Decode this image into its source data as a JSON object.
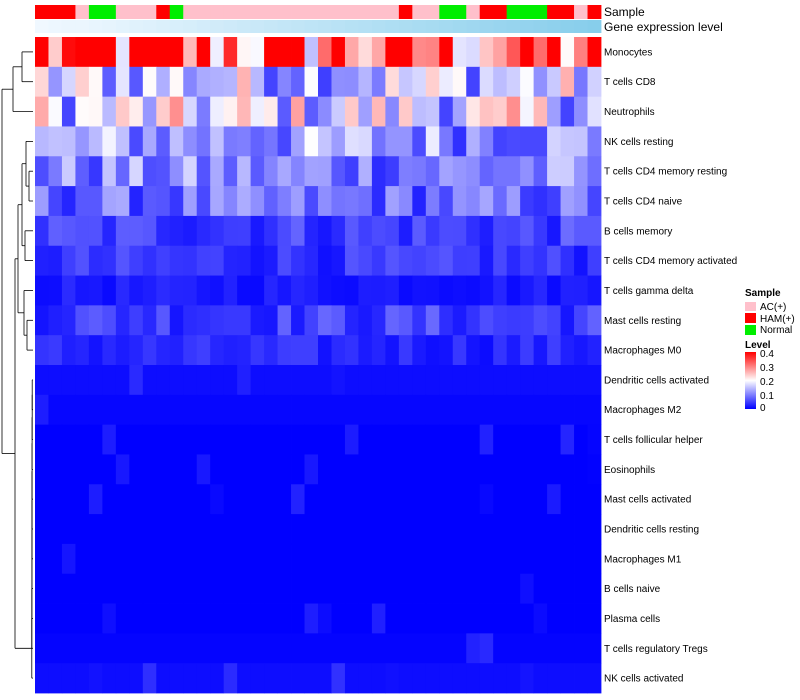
{
  "chart_data": {
    "type": "heatmap",
    "annotation_labels": [
      "Sample",
      "Gene expression level"
    ],
    "sample_groups": [
      "HAM(+)",
      "HAM(+)",
      "HAM(+)",
      "AC(+)",
      "Normal",
      "Normal",
      "AC(+)",
      "AC(+)",
      "AC(+)",
      "HAM(+)",
      "Normal",
      "AC(+)",
      "AC(+)",
      "AC(+)",
      "AC(+)",
      "AC(+)",
      "AC(+)",
      "AC(+)",
      "AC(+)",
      "AC(+)",
      "AC(+)",
      "AC(+)",
      "AC(+)",
      "AC(+)",
      "AC(+)",
      "AC(+)",
      "AC(+)",
      "HAM(+)",
      "AC(+)",
      "AC(+)",
      "Normal",
      "Normal",
      "AC(+)",
      "HAM(+)",
      "HAM(+)",
      "Normal",
      "Normal",
      "Normal",
      "HAM(+)",
      "HAM(+)",
      "AC(+)",
      "HAM(+)"
    ],
    "gene_expression_level": [
      0.97,
      0.96,
      0.95,
      0.95,
      0.94,
      0.93,
      0.92,
      0.91,
      0.9,
      0.89,
      0.88,
      0.87,
      0.86,
      0.85,
      0.84,
      0.83,
      0.82,
      0.81,
      0.8,
      0.79,
      0.78,
      0.77,
      0.76,
      0.75,
      0.74,
      0.73,
      0.72,
      0.71,
      0.7,
      0.69,
      0.68,
      0.67,
      0.66,
      0.65,
      0.64,
      0.63,
      0.62,
      0.61,
      0.6,
      0.59,
      0.58,
      0.57
    ],
    "rows": [
      {
        "name": "Monocytes",
        "base": 0.33
      },
      {
        "name": "T cells CD8",
        "base": 0.16
      },
      {
        "name": "Neutrophils",
        "base": 0.17
      },
      {
        "name": "NK cells resting",
        "base": 0.12
      },
      {
        "name": "T cells CD4 memory resting",
        "base": 0.1
      },
      {
        "name": "T cells CD4 naive",
        "base": 0.08
      },
      {
        "name": "B cells memory",
        "base": 0.05
      },
      {
        "name": "T cells CD4 memory activated",
        "base": 0.04
      },
      {
        "name": "T cells gamma delta",
        "base": 0.02
      },
      {
        "name": "Mast cells resting",
        "base": 0.05
      },
      {
        "name": "Macrophages M0",
        "base": 0.03
      },
      {
        "name": "Dendritic cells activated",
        "base": 0.01
      },
      {
        "name": "Macrophages M2",
        "base": 0.005
      },
      {
        "name": "T cells follicular helper",
        "base": 0.0
      },
      {
        "name": "Eosinophils",
        "base": 0.0
      },
      {
        "name": "Mast cells activated",
        "base": 0.0
      },
      {
        "name": "Dendritic cells resting",
        "base": 0.0
      },
      {
        "name": "Macrophages M1",
        "base": 0.0
      },
      {
        "name": "B cells naive",
        "base": 0.0
      },
      {
        "name": "Plasma cells",
        "base": 0.0
      },
      {
        "name": "T cells regulatory  Tregs",
        "base": 0.003
      },
      {
        "name": "NK cells activated",
        "base": 0.01
      }
    ],
    "sample_legend": {
      "title": "Sample",
      "entries": [
        {
          "label": "AC(+)",
          "color": "#FFC0CB"
        },
        {
          "label": "HAM(+)",
          "color": "#FF0000"
        },
        {
          "label": "Normal",
          "color": "#00EE00"
        }
      ]
    },
    "level_legend": {
      "title": "Level",
      "ticks": [
        "0.4",
        "0.3",
        "0.2",
        "0.1",
        "0"
      ],
      "tick_values": [
        0.4,
        0.3,
        0.2,
        0.1,
        0
      ],
      "range": [
        0,
        0.4
      ]
    },
    "colorscale": {
      "low": "#0000FF",
      "mid": "#FFFFFF",
      "high": "#FF0000",
      "mid_value": 0.2
    },
    "gene_level_gradient": {
      "light": "#F0F8FF",
      "dark": "#87CEEB"
    },
    "legend_position": "right"
  }
}
